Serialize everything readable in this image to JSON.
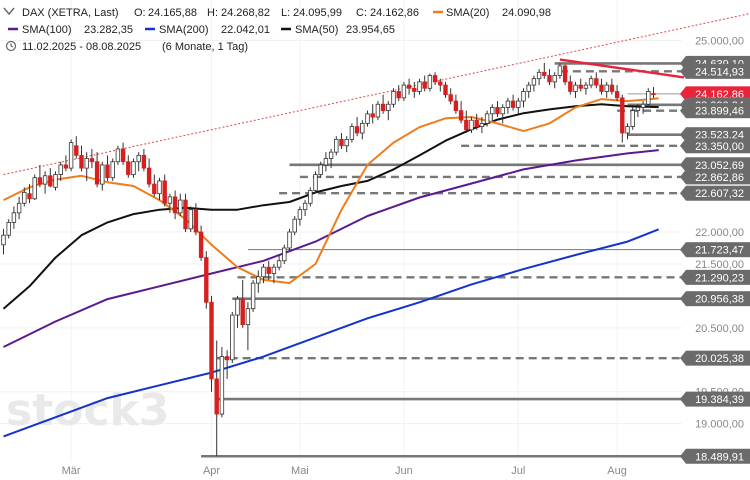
{
  "header": {
    "instrument": "DAX (XETRA, Last)",
    "ohlc": {
      "o_label": "O:",
      "o": "24.165,88",
      "h_label": "H:",
      "h": "24.268,82",
      "l_label": "L:",
      "l": "24.095,99",
      "c_label": "C:",
      "c": "24.162,86"
    },
    "period": "11.02.2025 - 08.08.2025",
    "period_detail": "(6 Monate, 1 Tag)"
  },
  "indicators": [
    {
      "label": "SMA(20)",
      "value": "24.090,98",
      "color": "#f07d1a"
    },
    {
      "label": "SMA(100)",
      "value": "23.282,35",
      "color": "#5b1a8f"
    },
    {
      "label": "SMA(200)",
      "value": "22.042,01",
      "color": "#1533cc"
    },
    {
      "label": "SMA(50)",
      "value": "23.954,65",
      "color": "#111111"
    }
  ],
  "watermark": "stock3",
  "colors": {
    "up": "#2aa043",
    "down": "#d62020",
    "resistance": "#e8233a",
    "support": "#555555",
    "tag_bg": "#6b6b6b",
    "current_tag_bg": "#e8233a",
    "trend_dotted": "#e54545"
  },
  "chart_data": {
    "type": "candlestick",
    "x_axis_ticks": [
      "Mär",
      "Apr",
      "Mai",
      "Jun",
      "Jul",
      "Aug"
    ],
    "y_axis_ticks": [
      "25.000,00",
      "22.000,00",
      "21.500,00",
      "20.500,00",
      "19.500,00",
      "19.000,00"
    ],
    "y_range": [
      18400,
      25350
    ],
    "current_price": "24.162,86",
    "price_levels": [
      {
        "label": "24.639,10",
        "value": 24639.1,
        "style": "solid"
      },
      {
        "label": "24.514,93",
        "value": 24514.93,
        "style": "dashed"
      },
      {
        "label": "24.162,86",
        "value": 24162.86,
        "style": "current"
      },
      {
        "label": "23.990,34",
        "value": 23990.34,
        "style": "solid"
      },
      {
        "label": "23.899,46",
        "value": 23899.46,
        "style": "dashed"
      },
      {
        "label": "23.523,24",
        "value": 23523.24,
        "style": "solid"
      },
      {
        "label": "23.350,00",
        "value": 23350.0,
        "style": "dashed"
      },
      {
        "label": "23.052,69",
        "value": 23052.69,
        "style": "solid"
      },
      {
        "label": "22.862,86",
        "value": 22862.86,
        "style": "dashed"
      },
      {
        "label": "22.607,32",
        "value": 22607.32,
        "style": "dashed"
      },
      {
        "label": "21.723,47",
        "value": 21723.47,
        "style": "thin"
      },
      {
        "label": "21.290,23",
        "value": 21290.23,
        "style": "dashed"
      },
      {
        "label": "20.956,38",
        "value": 20956.38,
        "style": "solid"
      },
      {
        "label": "20.025,38",
        "value": 20025.38,
        "style": "dashed"
      },
      {
        "label": "19.384,39",
        "value": 19384.39,
        "style": "solid"
      },
      {
        "label": "18.489,91",
        "value": 18489.91,
        "style": "solid"
      }
    ],
    "resistance_line": {
      "from": [
        107,
        24700
      ],
      "to": [
        126,
        24420
      ]
    },
    "trend_dotted": {
      "from": [
        0,
        22900
      ],
      "to": [
        130,
        25420
      ]
    },
    "sma": {
      "sma20": [
        [
          0,
          22500
        ],
        [
          5,
          22700
        ],
        [
          10,
          22820
        ],
        [
          15,
          22880
        ],
        [
          20,
          22780
        ],
        [
          25,
          22720
        ],
        [
          30,
          22500
        ],
        [
          35,
          22200
        ],
        [
          40,
          21800
        ],
        [
          45,
          21450
        ],
        [
          50,
          21250
        ],
        [
          55,
          21200
        ],
        [
          60,
          21500
        ],
        [
          65,
          22350
        ],
        [
          70,
          23050
        ],
        [
          75,
          23400
        ],
        [
          80,
          23640
        ],
        [
          85,
          23780
        ],
        [
          90,
          23800
        ],
        [
          95,
          23700
        ],
        [
          100,
          23580
        ],
        [
          105,
          23700
        ],
        [
          110,
          23950
        ],
        [
          115,
          24080
        ],
        [
          120,
          24050
        ],
        [
          126,
          24091
        ]
      ],
      "sma50": [
        [
          0,
          20800
        ],
        [
          5,
          21150
        ],
        [
          10,
          21600
        ],
        [
          15,
          21950
        ],
        [
          20,
          22150
        ],
        [
          25,
          22280
        ],
        [
          30,
          22350
        ],
        [
          35,
          22380
        ],
        [
          40,
          22350
        ],
        [
          45,
          22350
        ],
        [
          50,
          22420
        ],
        [
          55,
          22470
        ],
        [
          60,
          22620
        ],
        [
          65,
          22720
        ],
        [
          70,
          22800
        ],
        [
          75,
          22980
        ],
        [
          80,
          23200
        ],
        [
          85,
          23430
        ],
        [
          90,
          23610
        ],
        [
          95,
          23760
        ],
        [
          100,
          23860
        ],
        [
          105,
          23920
        ],
        [
          110,
          23970
        ],
        [
          115,
          24000
        ],
        [
          120,
          23970
        ],
        [
          126,
          23955
        ]
      ],
      "sma100": [
        [
          0,
          20200
        ],
        [
          10,
          20600
        ],
        [
          20,
          20950
        ],
        [
          30,
          21150
        ],
        [
          40,
          21350
        ],
        [
          50,
          21550
        ],
        [
          60,
          21850
        ],
        [
          70,
          22250
        ],
        [
          80,
          22540
        ],
        [
          90,
          22760
        ],
        [
          100,
          22980
        ],
        [
          110,
          23120
        ],
        [
          120,
          23230
        ],
        [
          126,
          23282
        ]
      ],
      "sma200": [
        [
          0,
          18800
        ],
        [
          20,
          19400
        ],
        [
          30,
          19600
        ],
        [
          40,
          19800
        ],
        [
          50,
          20050
        ],
        [
          60,
          20350
        ],
        [
          70,
          20650
        ],
        [
          80,
          20900
        ],
        [
          90,
          21180
        ],
        [
          100,
          21420
        ],
        [
          110,
          21640
        ],
        [
          120,
          21850
        ],
        [
          126,
          22042
        ]
      ]
    },
    "candles": [
      [
        0,
        21800,
        22050,
        21650,
        21950
      ],
      [
        1,
        21950,
        22200,
        21900,
        22150
      ],
      [
        2,
        22150,
        22400,
        22050,
        22300
      ],
      [
        3,
        22300,
        22550,
        22200,
        22450
      ],
      [
        4,
        22450,
        22700,
        22400,
        22620
      ],
      [
        5,
        22600,
        22750,
        22450,
        22520
      ],
      [
        6,
        22520,
        22900,
        22500,
        22850
      ],
      [
        7,
        22850,
        23050,
        22700,
        22750
      ],
      [
        8,
        22750,
        22950,
        22600,
        22880
      ],
      [
        9,
        22880,
        23000,
        22700,
        22720
      ],
      [
        10,
        22700,
        22950,
        22650,
        22900
      ],
      [
        11,
        22900,
        23100,
        22800,
        23050
      ],
      [
        12,
        23050,
        23200,
        22950,
        23000
      ],
      [
        13,
        23000,
        23450,
        22950,
        23400
      ],
      [
        14,
        23350,
        23500,
        23150,
        23200
      ],
      [
        15,
        23200,
        23350,
        22950,
        23000
      ],
      [
        16,
        23000,
        23250,
        22800,
        23150
      ],
      [
        17,
        23150,
        23300,
        23000,
        23100
      ],
      [
        18,
        23100,
        23250,
        22700,
        22750
      ],
      [
        19,
        22750,
        23100,
        22650,
        23050
      ],
      [
        20,
        23050,
        23200,
        22800,
        22850
      ],
      [
        21,
        22850,
        23150,
        22800,
        23100
      ],
      [
        22,
        23100,
        23350,
        23050,
        23300
      ],
      [
        23,
        23300,
        23400,
        23050,
        23100
      ],
      [
        24,
        23100,
        23200,
        22850,
        22900
      ],
      [
        25,
        22900,
        23150,
        22850,
        23100
      ],
      [
        26,
        23100,
        23250,
        22950,
        23200
      ],
      [
        27,
        23200,
        23300,
        22950,
        23000
      ],
      [
        28,
        23000,
        23150,
        22700,
        22750
      ],
      [
        29,
        22750,
        22900,
        22550,
        22600
      ],
      [
        30,
        22600,
        22850,
        22500,
        22800
      ],
      [
        31,
        22800,
        22900,
        22400,
        22450
      ],
      [
        32,
        22450,
        22600,
        22300,
        22550
      ],
      [
        33,
        22550,
        22650,
        22200,
        22300
      ],
      [
        34,
        22300,
        22600,
        22250,
        22500
      ],
      [
        35,
        22500,
        22600,
        22000,
        22050
      ],
      [
        36,
        22050,
        22400,
        22000,
        22350
      ],
      [
        37,
        22350,
        22450,
        21950,
        22000
      ],
      [
        38,
        22000,
        22100,
        21550,
        21600
      ],
      [
        39,
        21600,
        21700,
        20800,
        20900
      ],
      [
        40,
        20900,
        21000,
        19500,
        19700
      ],
      [
        41,
        19700,
        20300,
        18490,
        19150
      ],
      [
        42,
        19150,
        20200,
        19100,
        20050
      ],
      [
        43,
        20050,
        20150,
        19700,
        20000
      ],
      [
        44,
        20000,
        20750,
        19950,
        20700
      ],
      [
        45,
        20700,
        21000,
        20500,
        20950
      ],
      [
        46,
        20950,
        21250,
        20500,
        20550
      ],
      [
        47,
        20550,
        20900,
        20150,
        20800
      ],
      [
        48,
        20800,
        21250,
        20750,
        21200
      ],
      [
        49,
        21200,
        21400,
        21050,
        21300
      ],
      [
        50,
        21300,
        21500,
        21200,
        21450
      ],
      [
        51,
        21450,
        21550,
        21250,
        21350
      ],
      [
        52,
        21350,
        21500,
        21200,
        21450
      ],
      [
        53,
        21450,
        21650,
        21400,
        21550
      ],
      [
        54,
        21550,
        21800,
        21500,
        21750
      ],
      [
        55,
        21750,
        22050,
        21700,
        22000
      ],
      [
        56,
        22000,
        22250,
        21950,
        22200
      ],
      [
        57,
        22200,
        22400,
        22100,
        22350
      ],
      [
        58,
        22350,
        22500,
        22250,
        22450
      ],
      [
        59,
        22450,
        22700,
        22400,
        22650
      ],
      [
        60,
        22650,
        22950,
        22600,
        22900
      ],
      [
        61,
        22900,
        23100,
        22850,
        23050
      ],
      [
        62,
        23050,
        23250,
        22950,
        23150
      ],
      [
        63,
        23150,
        23300,
        23000,
        23250
      ],
      [
        64,
        23250,
        23500,
        23200,
        23450
      ],
      [
        65,
        23450,
        23550,
        23300,
        23350
      ],
      [
        66,
        23350,
        23500,
        23250,
        23450
      ],
      [
        67,
        23450,
        23700,
        23400,
        23650
      ],
      [
        68,
        23650,
        23800,
        23500,
        23550
      ],
      [
        69,
        23550,
        23750,
        23450,
        23700
      ],
      [
        70,
        23700,
        23900,
        23650,
        23850
      ],
      [
        71,
        23850,
        24000,
        23700,
        23800
      ],
      [
        72,
        23800,
        24050,
        23750,
        24000
      ],
      [
        73,
        24000,
        24150,
        23850,
        23900
      ],
      [
        74,
        23900,
        24050,
        23750,
        24000
      ],
      [
        75,
        24000,
        24250,
        23950,
        24200
      ],
      [
        76,
        24200,
        24300,
        24050,
        24100
      ],
      [
        77,
        24100,
        24350,
        24050,
        24300
      ],
      [
        78,
        24300,
        24400,
        24150,
        24250
      ],
      [
        79,
        24250,
        24350,
        24100,
        24200
      ],
      [
        80,
        24200,
        24400,
        24150,
        24350
      ],
      [
        81,
        24350,
        24450,
        24200,
        24250
      ],
      [
        82,
        24250,
        24480,
        24200,
        24450
      ],
      [
        83,
        24450,
        24500,
        24300,
        24350
      ],
      [
        84,
        24350,
        24400,
        24200,
        24300
      ],
      [
        85,
        24300,
        24350,
        24100,
        24150
      ],
      [
        86,
        24150,
        24250,
        24000,
        24050
      ],
      [
        87,
        24050,
        24150,
        23850,
        23900
      ],
      [
        88,
        23900,
        24050,
        23700,
        23750
      ],
      [
        89,
        23750,
        23900,
        23550,
        23600
      ],
      [
        90,
        23600,
        23800,
        23550,
        23750
      ],
      [
        91,
        23750,
        23850,
        23600,
        23650
      ],
      [
        92,
        23650,
        23800,
        23550,
        23700
      ],
      [
        93,
        23700,
        23900,
        23650,
        23850
      ],
      [
        94,
        23850,
        24000,
        23750,
        23950
      ],
      [
        95,
        23950,
        24050,
        23800,
        23850
      ],
      [
        96,
        23850,
        24000,
        23700,
        23950
      ],
      [
        97,
        23950,
        24100,
        23850,
        24050
      ],
      [
        98,
        24050,
        24150,
        23900,
        23950
      ],
      [
        99,
        23950,
        24100,
        23850,
        24050
      ],
      [
        100,
        24050,
        24250,
        23950,
        24200
      ],
      [
        101,
        24200,
        24350,
        24100,
        24300
      ],
      [
        102,
        24300,
        24450,
        24200,
        24400
      ],
      [
        103,
        24400,
        24550,
        24300,
        24500
      ],
      [
        104,
        24500,
        24650,
        24400,
        24450
      ],
      [
        105,
        24450,
        24550,
        24300,
        24350
      ],
      [
        106,
        24350,
        24500,
        24250,
        24450
      ],
      [
        107,
        24450,
        24640,
        24400,
        24600
      ],
      [
        108,
        24600,
        24620,
        24300,
        24350
      ],
      [
        109,
        24350,
        24450,
        24150,
        24200
      ],
      [
        110,
        24200,
        24350,
        24100,
        24300
      ],
      [
        111,
        24300,
        24400,
        24200,
        24250
      ],
      [
        112,
        24250,
        24350,
        24150,
        24300
      ],
      [
        113,
        24300,
        24450,
        24250,
        24400
      ],
      [
        114,
        24400,
        24500,
        24250,
        24300
      ],
      [
        115,
        24300,
        24400,
        24150,
        24200
      ],
      [
        116,
        24200,
        24350,
        24100,
        24300
      ],
      [
        117,
        24300,
        24400,
        24150,
        24200
      ],
      [
        118,
        24200,
        24300,
        24050,
        24100
      ],
      [
        119,
        24100,
        24150,
        23400,
        23550
      ],
      [
        120,
        23550,
        23700,
        23450,
        23650
      ],
      [
        121,
        23650,
        23950,
        23600,
        23900
      ],
      [
        122,
        23900,
        24000,
        23800,
        23950
      ],
      [
        123,
        23950,
        24050,
        23850,
        24000
      ],
      [
        124,
        24000,
        24250,
        23950,
        24200
      ],
      [
        125,
        24166,
        24269,
        24096,
        24163
      ]
    ]
  }
}
